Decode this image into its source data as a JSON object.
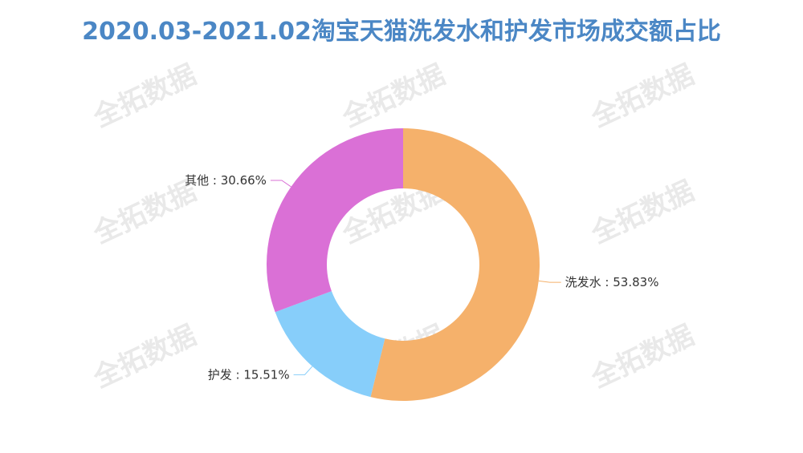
{
  "title": "2020.03-2021.02淘宝天猫洗发水和护发市场成交额占比",
  "watermark": "全拓数据",
  "colors": {
    "title": "#4b87c5",
    "leader": "#aaaaaa"
  },
  "chart_data": {
    "type": "pie",
    "variant": "donut",
    "title": "2020.03-2021.02淘宝天猫洗发水和护发市场成交额占比",
    "unit": "%",
    "slices": [
      {
        "name": "洗发水",
        "value": 53.83,
        "label": "洗发水 : 53.83%",
        "color": "#f5b16b"
      },
      {
        "name": "护发",
        "value": 15.51,
        "label": "护发 : 15.51%",
        "color": "#87cefa"
      },
      {
        "name": "其他",
        "value": 30.66,
        "label": "其他 : 30.66%",
        "color": "#da70d6"
      }
    ],
    "legend": "none"
  }
}
